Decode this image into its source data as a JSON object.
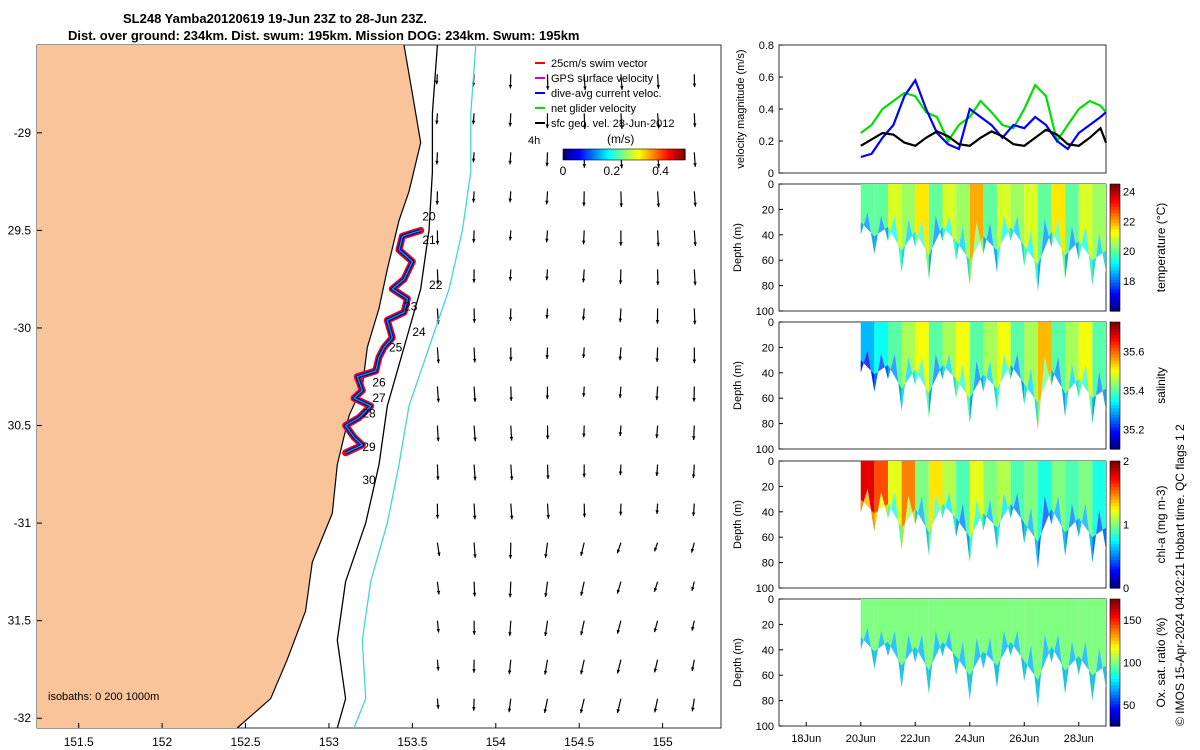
{
  "title_line1": "SL248 Yamba20120619 19-Jun 23Z to 28-Jun 23Z.",
  "title_line2": "Dist. over ground: 234km. Dist. swum: 195km. Mission DOG: 234km. Swum: 195km",
  "side_note": "© IMOS 15-Apr-2024 04:02:21 Hobart time. QC flags 1 2",
  "colors": {
    "land": "#f9c49a",
    "isobath_0": "#000000",
    "isobath_200": "#000000",
    "isobath_1000": "#3fd7d7",
    "swim": "#ff0000",
    "gps": "#cc00cc",
    "dive_avg": "#0000ff",
    "net_glider": "#00e000",
    "sfc_geo": "#000000"
  },
  "chart_data": [
    {
      "type": "map",
      "name": "glider track map",
      "xlim": [
        151.25,
        155.35
      ],
      "ylim": [
        -32.05,
        -28.55
      ],
      "xticks": [
        151.5,
        152,
        152.5,
        153,
        153.5,
        154,
        154.5,
        155
      ],
      "xtick_labels": [
        "151.5",
        "152",
        "152.5",
        "153",
        "153.5",
        "154",
        "154.5",
        "155"
      ],
      "yticks": [
        -29,
        -29.5,
        -30,
        -30.5,
        -31,
        -31.5,
        -32
      ],
      "ytick_labels": [
        "-29",
        "29.5",
        "-30",
        "30.5",
        "-31",
        "31.5",
        "-32"
      ],
      "legend": {
        "placement": "top-right",
        "entries": [
          {
            "label": "25cm/s swim vector",
            "color": "#ff0000"
          },
          {
            "label": "GPS surface velocity",
            "color": "#cc00cc"
          },
          {
            "label": "dive-avg current veloc.",
            "color": "#0000ff"
          },
          {
            "label": "net glider velocity",
            "color": "#00e000"
          },
          {
            "label": "sfc geo. vel. 28-Jun-2012",
            "color": "#000000"
          }
        ]
      },
      "colorbar": {
        "title": "(m/s)",
        "side_label": "4h",
        "ticks": [
          0,
          0.2,
          0.4
        ],
        "tick_labels": [
          "0",
          "0.2",
          "0.4"
        ],
        "range": [
          0,
          0.5
        ]
      },
      "isobaths_label": "isobaths: 0   200  1000m",
      "day_labels": [
        {
          "label": "20",
          "lon": 153.56,
          "lat": -29.45
        },
        {
          "label": "21",
          "lon": 153.56,
          "lat": -29.57
        },
        {
          "label": "22",
          "lon": 153.6,
          "lat": -29.8
        },
        {
          "label": "23",
          "lon": 153.45,
          "lat": -29.91
        },
        {
          "label": "24",
          "lon": 153.5,
          "lat": -30.04
        },
        {
          "label": "25",
          "lon": 153.36,
          "lat": -30.12
        },
        {
          "label": "26",
          "lon": 153.26,
          "lat": -30.3
        },
        {
          "label": "27",
          "lon": 153.26,
          "lat": -30.38
        },
        {
          "label": "28",
          "lon": 153.2,
          "lat": -30.46
        },
        {
          "label": "29",
          "lon": 153.2,
          "lat": -30.63
        },
        {
          "label": "30",
          "lon": 153.2,
          "lat": -30.8
        }
      ],
      "track": [
        [
          153.55,
          -29.5
        ],
        [
          153.44,
          -29.53
        ],
        [
          153.42,
          -29.6
        ],
        [
          153.5,
          -29.66
        ],
        [
          153.45,
          -29.75
        ],
        [
          153.38,
          -29.8
        ],
        [
          153.47,
          -29.85
        ],
        [
          153.45,
          -29.92
        ],
        [
          153.35,
          -29.96
        ],
        [
          153.38,
          -30.05
        ],
        [
          153.33,
          -30.1
        ],
        [
          153.3,
          -30.15
        ],
        [
          153.28,
          -30.22
        ],
        [
          153.17,
          -30.25
        ],
        [
          153.2,
          -30.32
        ],
        [
          153.15,
          -30.36
        ],
        [
          153.25,
          -30.4
        ],
        [
          153.18,
          -30.46
        ],
        [
          153.1,
          -30.5
        ],
        [
          153.15,
          -30.56
        ],
        [
          153.2,
          -30.6
        ],
        [
          153.1,
          -30.64
        ]
      ],
      "coastline": [
        [
          153.45,
          -28.55
        ],
        [
          153.5,
          -28.8
        ],
        [
          153.55,
          -29.05
        ],
        [
          153.48,
          -29.3
        ],
        [
          153.42,
          -29.45
        ],
        [
          153.35,
          -29.7
        ],
        [
          153.3,
          -29.9
        ],
        [
          153.23,
          -30.1
        ],
        [
          153.2,
          -30.3
        ],
        [
          153.12,
          -30.45
        ],
        [
          153.05,
          -30.7
        ],
        [
          153.02,
          -30.95
        ],
        [
          152.9,
          -31.2
        ],
        [
          152.86,
          -31.45
        ],
        [
          152.75,
          -31.7
        ],
        [
          152.65,
          -31.9
        ],
        [
          152.45,
          -32.05
        ]
      ],
      "isobath_200_line": [
        [
          153.65,
          -28.55
        ],
        [
          153.62,
          -28.9
        ],
        [
          153.62,
          -29.2
        ],
        [
          153.6,
          -29.5
        ],
        [
          153.55,
          -29.8
        ],
        [
          153.45,
          -30.1
        ],
        [
          153.35,
          -30.4
        ],
        [
          153.3,
          -30.7
        ],
        [
          153.22,
          -31.0
        ],
        [
          153.1,
          -31.3
        ],
        [
          153.05,
          -31.6
        ],
        [
          153.1,
          -31.9
        ],
        [
          153.05,
          -32.05
        ]
      ],
      "isobath_1000_line": [
        [
          153.88,
          -28.55
        ],
        [
          153.85,
          -28.9
        ],
        [
          153.85,
          -29.2
        ],
        [
          153.8,
          -29.5
        ],
        [
          153.72,
          -29.8
        ],
        [
          153.6,
          -30.1
        ],
        [
          153.48,
          -30.4
        ],
        [
          153.42,
          -30.7
        ],
        [
          153.35,
          -31.0
        ],
        [
          153.25,
          -31.3
        ],
        [
          153.2,
          -31.6
        ],
        [
          153.22,
          -31.9
        ],
        [
          153.15,
          -32.05
        ]
      ]
    },
    {
      "type": "line",
      "name": "velocity magnitude",
      "ylabel": "velocity magnitude (m/s)",
      "ylim": [
        0,
        0.8
      ],
      "yticks": [
        0,
        0.2,
        0.4,
        0.6,
        0.8
      ],
      "ytick_labels": [
        "0",
        "0.2",
        "0.4",
        "0.6",
        "0.8"
      ],
      "xlim": [
        17,
        29
      ],
      "series": [
        {
          "color": "#00e000",
          "x": [
            20,
            20.4,
            20.8,
            21.2,
            21.6,
            22,
            22.4,
            22.8,
            23.2,
            23.6,
            24,
            24.4,
            24.8,
            25.2,
            25.6,
            26,
            26.4,
            26.8,
            27.2,
            27.6,
            28,
            28.4,
            28.8,
            29
          ],
          "values": [
            0.25,
            0.3,
            0.4,
            0.45,
            0.5,
            0.48,
            0.38,
            0.35,
            0.2,
            0.3,
            0.35,
            0.45,
            0.38,
            0.3,
            0.28,
            0.4,
            0.55,
            0.48,
            0.2,
            0.3,
            0.4,
            0.45,
            0.42,
            0.38
          ]
        },
        {
          "color": "#0000ff",
          "x": [
            20,
            20.4,
            20.8,
            21.2,
            21.6,
            22,
            22.4,
            22.8,
            23.2,
            23.6,
            24,
            24.4,
            24.8,
            25.2,
            25.6,
            26,
            26.4,
            26.8,
            27.2,
            27.6,
            28,
            28.4,
            28.8,
            29
          ],
          "values": [
            0.1,
            0.12,
            0.22,
            0.3,
            0.48,
            0.58,
            0.4,
            0.25,
            0.18,
            0.15,
            0.4,
            0.35,
            0.3,
            0.22,
            0.3,
            0.28,
            0.35,
            0.3,
            0.2,
            0.15,
            0.25,
            0.3,
            0.35,
            0.38
          ]
        },
        {
          "color": "#000000",
          "x": [
            20,
            20.4,
            20.8,
            21.2,
            21.6,
            22,
            22.4,
            22.8,
            23.2,
            23.6,
            24,
            24.4,
            24.8,
            25.2,
            25.6,
            26,
            26.4,
            26.8,
            27.2,
            27.6,
            28,
            28.4,
            28.8,
            29
          ],
          "values": [
            0.17,
            0.21,
            0.25,
            0.24,
            0.19,
            0.17,
            0.22,
            0.26,
            0.23,
            0.18,
            0.17,
            0.22,
            0.26,
            0.23,
            0.18,
            0.17,
            0.22,
            0.27,
            0.24,
            0.18,
            0.17,
            0.22,
            0.28,
            0.19
          ]
        }
      ]
    },
    {
      "type": "heatmap",
      "name": "temperature",
      "ylabel": "Depth (m)",
      "clabel": "temperature (°C)",
      "clim": [
        16,
        24.5
      ],
      "cticks": [
        18,
        20,
        22,
        24
      ],
      "ylim": [
        100,
        0
      ],
      "yticks": [
        0,
        20,
        40,
        60,
        80,
        100
      ],
      "xlim": [
        17,
        29
      ],
      "profile_days": [
        20,
        20.5,
        21,
        21.5,
        22,
        22.5,
        23,
        23.5,
        24,
        24.5,
        25,
        25.5,
        26,
        26.5,
        27,
        27.5,
        28,
        28.5,
        29
      ],
      "max_depth": [
        40,
        55,
        45,
        70,
        50,
        75,
        45,
        60,
        80,
        55,
        70,
        45,
        65,
        85,
        50,
        75,
        60,
        80,
        70
      ],
      "values": [
        20,
        20,
        21,
        20.5,
        21.5,
        20,
        21,
        20.5,
        22,
        20,
        21,
        20.5,
        21,
        20,
        21.5,
        20,
        21,
        20.5,
        21
      ]
    },
    {
      "type": "heatmap",
      "name": "salinity",
      "ylabel": "Depth (m)",
      "clabel": "salinity",
      "clim": [
        35.1,
        35.75
      ],
      "cticks": [
        35.2,
        35.4,
        35.6
      ],
      "ylim": [
        100,
        0
      ],
      "yticks": [
        0,
        20,
        40,
        60,
        80,
        100
      ],
      "xlim": [
        17,
        29
      ],
      "profile_days": [
        20,
        20.5,
        21,
        21.5,
        22,
        22.5,
        23,
        23.5,
        24,
        24.5,
        25,
        25.5,
        26,
        26.5,
        27,
        27.5,
        28,
        28.5,
        29
      ],
      "max_depth": [
        40,
        55,
        45,
        70,
        50,
        75,
        45,
        60,
        80,
        55,
        70,
        45,
        65,
        85,
        50,
        75,
        60,
        80,
        70
      ],
      "values": [
        35.3,
        35.35,
        35.4,
        35.45,
        35.5,
        35.4,
        35.45,
        35.5,
        35.4,
        35.45,
        35.5,
        35.4,
        35.45,
        35.55,
        35.4,
        35.45,
        35.5,
        35.4,
        35.45
      ]
    },
    {
      "type": "heatmap",
      "name": "chl-a",
      "ylabel": "Depth (m)",
      "clabel": "chl-a (mg m-3)",
      "clim": [
        0,
        2
      ],
      "cticks": [
        0,
        1,
        2
      ],
      "ylim": [
        100,
        0
      ],
      "yticks": [
        0,
        20,
        40,
        60,
        80,
        100
      ],
      "xlim": [
        17,
        29
      ],
      "profile_days": [
        20,
        20.5,
        21,
        21.5,
        22,
        22.5,
        23,
        23.5,
        24,
        24.5,
        25,
        25.5,
        26,
        26.5,
        27,
        27.5,
        28,
        28.5,
        29
      ],
      "max_depth": [
        40,
        55,
        45,
        70,
        50,
        75,
        45,
        60,
        80,
        55,
        70,
        45,
        65,
        85,
        50,
        75,
        60,
        80,
        70
      ],
      "values": [
        1.8,
        1.6,
        1.2,
        1.5,
        1.0,
        1.3,
        1.1,
        0.9,
        1.2,
        1.0,
        1.1,
        0.9,
        1.0,
        0.8,
        1.0,
        0.9,
        1.0,
        0.8,
        0.9
      ]
    },
    {
      "type": "heatmap",
      "name": "oxygen saturation",
      "ylabel": "Depth (m)",
      "clabel": "Ox. sat. ratio (%)",
      "clim": [
        25,
        175
      ],
      "cticks": [
        50,
        100,
        150
      ],
      "ylim": [
        100,
        0
      ],
      "yticks": [
        0,
        20,
        40,
        60,
        80,
        100
      ],
      "xlim": [
        17,
        29
      ],
      "profile_days": [
        20,
        20.5,
        21,
        21.5,
        22,
        22.5,
        23,
        23.5,
        24,
        24.5,
        25,
        25.5,
        26,
        26.5,
        27,
        27.5,
        28,
        28.5,
        29
      ],
      "max_depth": [
        40,
        55,
        45,
        70,
        50,
        75,
        45,
        60,
        80,
        55,
        70,
        45,
        65,
        85,
        50,
        75,
        60,
        80,
        70
      ],
      "values": [
        100,
        100,
        100,
        100,
        100,
        100,
        100,
        100,
        100,
        100,
        100,
        100,
        100,
        100,
        100,
        100,
        100,
        100,
        100
      ]
    }
  ],
  "time_axis": {
    "ticks": [
      18,
      20,
      22,
      24,
      26,
      28
    ],
    "tick_labels": [
      "18Jun",
      "20Jun",
      "22Jun",
      "24Jun",
      "26Jun",
      "28Jun"
    ]
  }
}
